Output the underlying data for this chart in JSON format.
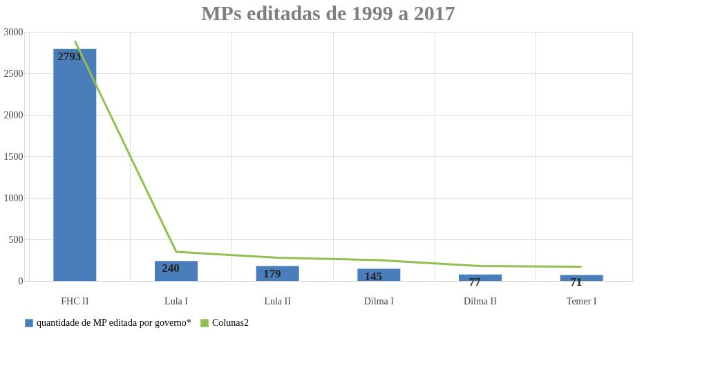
{
  "chart_data": {
    "type": "bar",
    "title": "MPs editadas de 1999 a 2017",
    "categories": [
      "FHC II",
      "Lula I",
      "Lula II",
      "Dilma I",
      "Dilma II",
      "Temer I"
    ],
    "series": [
      {
        "name": "quantidade de MP editada por governo*",
        "color": "#4a7ebb",
        "values": [
          2793,
          240,
          179,
          145,
          77,
          71
        ],
        "value_labels": [
          "2793",
          "240",
          "179",
          "145",
          "77",
          "71"
        ]
      },
      {
        "name": "Colunas2",
        "type": "line",
        "color": "#92c050",
        "values": [
          2890,
          350,
          280,
          250,
          180,
          170
        ]
      }
    ],
    "ylim": [
      0,
      3000
    ],
    "yticks": [
      0,
      500,
      1000,
      1500,
      2000,
      2500,
      3000
    ],
    "grid": true,
    "legend": "bottom"
  }
}
